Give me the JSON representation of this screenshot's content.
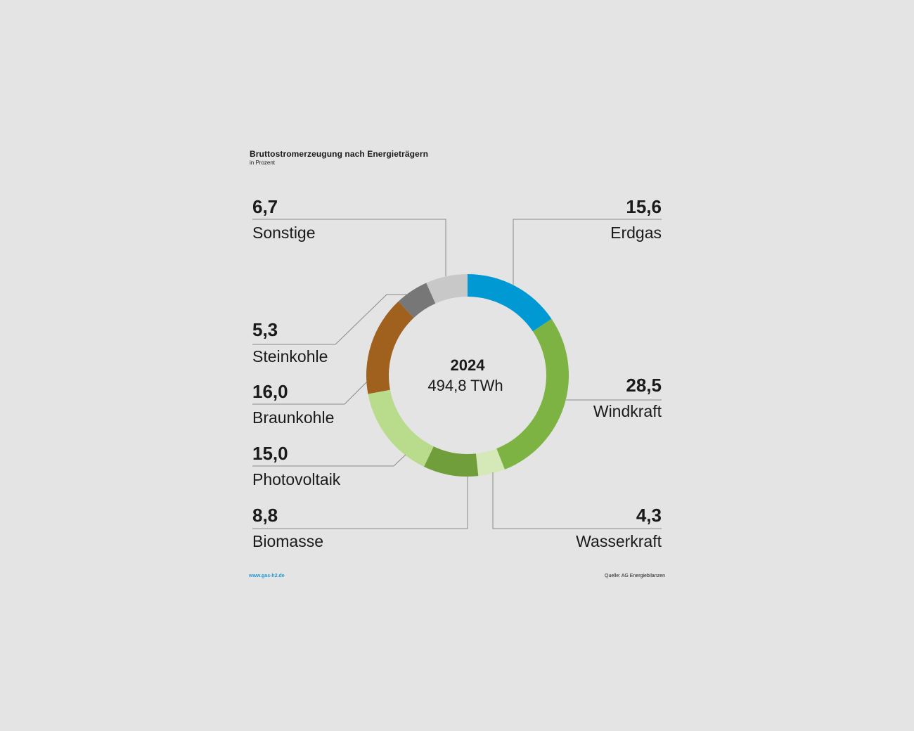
{
  "chart_data": {
    "type": "pie",
    "title": "Bruttostromerzeugung nach Energieträgern",
    "subtitle": "in Prozent",
    "center": {
      "year": "2024",
      "total": "494,8 TWh"
    },
    "slices": [
      {
        "name": "Erdgas",
        "value": 15.6,
        "label": "15,6",
        "color": "#0099d3"
      },
      {
        "name": "Windkraft",
        "value": 28.5,
        "label": "28,5",
        "color": "#7cb342"
      },
      {
        "name": "Wasserkraft",
        "value": 4.3,
        "label": "4,3",
        "color": "#d5e8b8"
      },
      {
        "name": "Biomasse",
        "value": 8.8,
        "label": "8,8",
        "color": "#6f9e3a"
      },
      {
        "name": "Photovoltaik",
        "value": 15.0,
        "label": "15,0",
        "color": "#b9dc8c"
      },
      {
        "name": "Braunkohle",
        "value": 16.0,
        "label": "16,0",
        "color": "#a0601e"
      },
      {
        "name": "Steinkohle",
        "value": 5.3,
        "label": "5,3",
        "color": "#777777"
      },
      {
        "name": "Sonstige",
        "value": 6.7,
        "label": "6,7",
        "color": "#c8c8c8"
      }
    ]
  },
  "footer": {
    "url": "www.gas-h2.de",
    "source": "Quelle: AG Energiebilanzen"
  }
}
